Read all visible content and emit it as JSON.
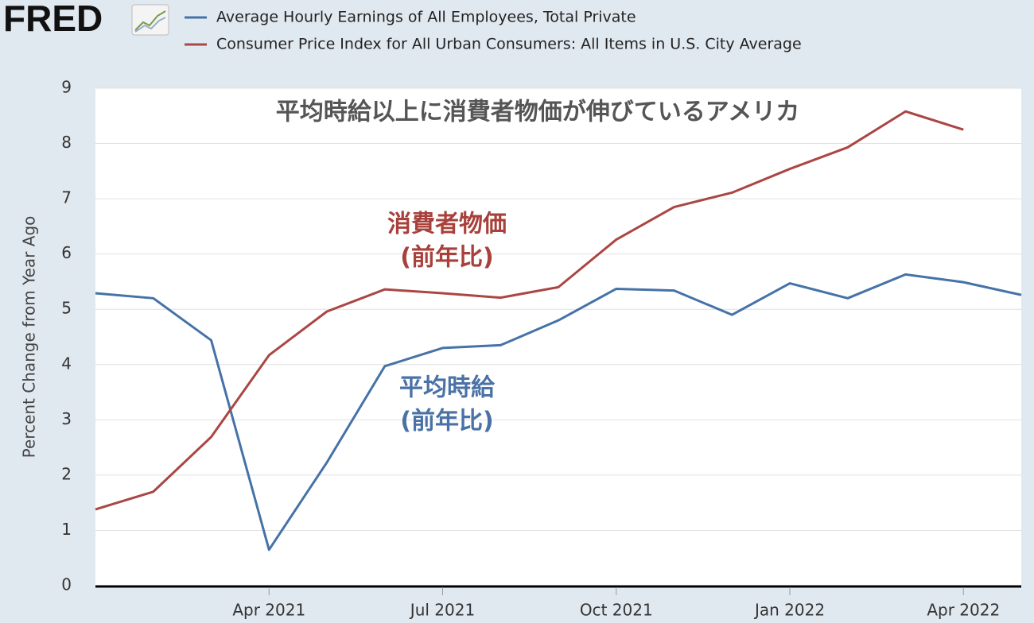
{
  "logo": "FRED",
  "chart_data": {
    "type": "line",
    "title": "平均時給以上に消費者物価が伸びているアメリカ",
    "y_label": "Percent Change from Year Ago",
    "x": [
      "2021-01",
      "2021-02",
      "2021-03",
      "2021-04",
      "2021-05",
      "2021-06",
      "2021-07",
      "2021-08",
      "2021-09",
      "2021-10",
      "2021-11",
      "2021-12",
      "2022-01",
      "2022-02",
      "2022-03",
      "2022-04",
      "2022-05"
    ],
    "xticks": [
      {
        "value": "2021-04",
        "label": "Apr 2021"
      },
      {
        "value": "2021-07",
        "label": "Jul 2021"
      },
      {
        "value": "2021-10",
        "label": "Oct 2021"
      },
      {
        "value": "2022-01",
        "label": "Jan 2022"
      },
      {
        "value": "2022-04",
        "label": "Apr 2022"
      }
    ],
    "ylim": [
      0,
      9
    ],
    "yticks": [
      0,
      1,
      2,
      3,
      4,
      5,
      6,
      7,
      8,
      9
    ],
    "grid": true,
    "series": [
      {
        "name": "Average Hourly Earnings of All Employees, Total Private",
        "color": "#4572a7",
        "values": [
          5.29,
          5.2,
          4.44,
          0.65,
          2.23,
          3.97,
          4.3,
          4.35,
          4.8,
          5.37,
          5.34,
          4.9,
          5.47,
          5.2,
          5.63,
          5.49,
          5.26
        ]
      },
      {
        "name": "Consumer Price Index for All Urban Consumers: All Items in U.S. City Average",
        "color": "#aa4643",
        "values": [
          1.38,
          1.7,
          2.69,
          4.17,
          4.96,
          5.36,
          5.29,
          5.21,
          5.4,
          6.26,
          6.85,
          7.11,
          7.54,
          7.93,
          8.58,
          8.25,
          null
        ]
      }
    ],
    "annotations": [
      {
        "text": [
          "消費者物価",
          "(前年比)"
        ],
        "color": "#a8413b"
      },
      {
        "text": [
          "平均時給",
          "(前年比)"
        ],
        "color": "#4a72a6"
      }
    ]
  }
}
